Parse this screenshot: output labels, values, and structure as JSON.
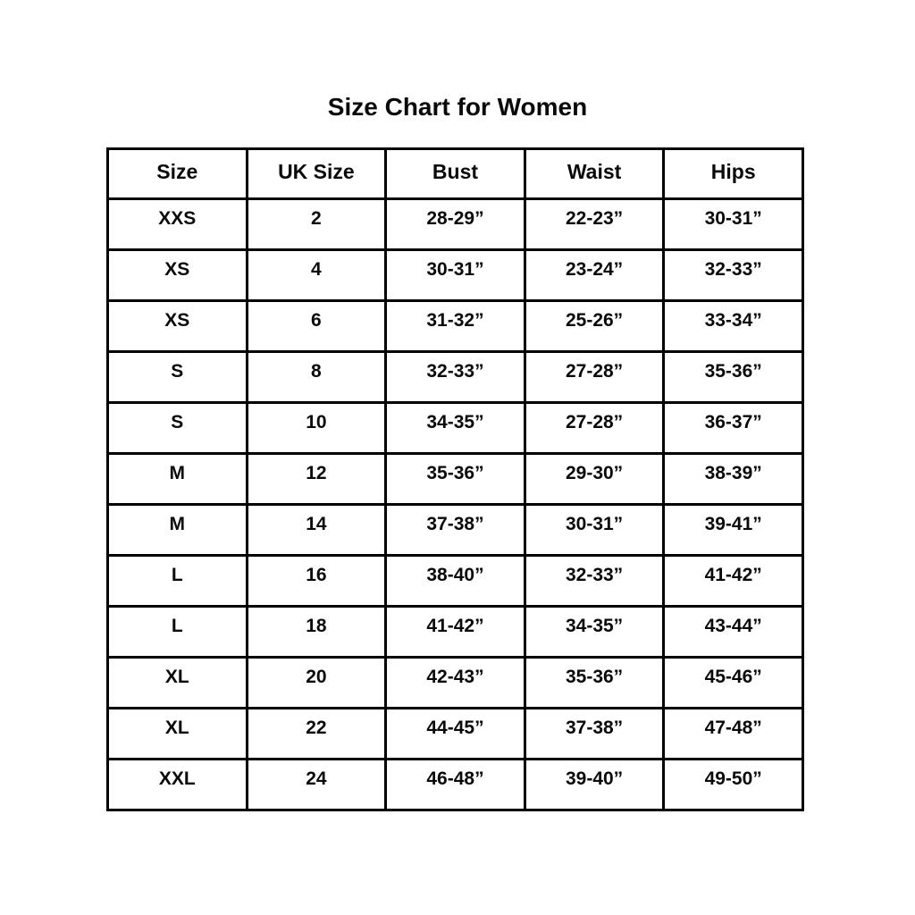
{
  "page": {
    "background_color": "#ffffff",
    "text_color": "#0a0a0a",
    "border_color": "#000000"
  },
  "chart_data": {
    "type": "table",
    "title": "Size Chart for Women",
    "columns": [
      "Size",
      "UK Size",
      "Bust",
      "Waist",
      "Hips"
    ],
    "rows": [
      [
        "XXS",
        "2",
        "28-29”",
        "22-23”",
        "30-31”"
      ],
      [
        "XS",
        "4",
        "30-31”",
        "23-24”",
        "32-33”"
      ],
      [
        "XS",
        "6",
        "31-32”",
        "25-26”",
        "33-34”"
      ],
      [
        "S",
        "8",
        "32-33”",
        "27-28”",
        "35-36”"
      ],
      [
        "S",
        "10",
        "34-35”",
        "27-28”",
        "36-37”"
      ],
      [
        "M",
        "12",
        "35-36”",
        "29-30”",
        "38-39”"
      ],
      [
        "M",
        "14",
        "37-38”",
        "30-31”",
        "39-41”"
      ],
      [
        "L",
        "16",
        "38-40”",
        "32-33”",
        "41-42”"
      ],
      [
        "L",
        "18",
        "41-42”",
        "34-35”",
        "43-44”"
      ],
      [
        "XL",
        "20",
        "42-43”",
        "35-36”",
        "45-46”"
      ],
      [
        "XL",
        "22",
        "44-45”",
        "37-38”",
        "47-48”"
      ],
      [
        "XXL",
        "24",
        "46-48”",
        "39-40”",
        "49-50”"
      ]
    ],
    "layout": {
      "grid": true,
      "header_row": true,
      "all_text_bold": true,
      "alignment": "center"
    }
  }
}
